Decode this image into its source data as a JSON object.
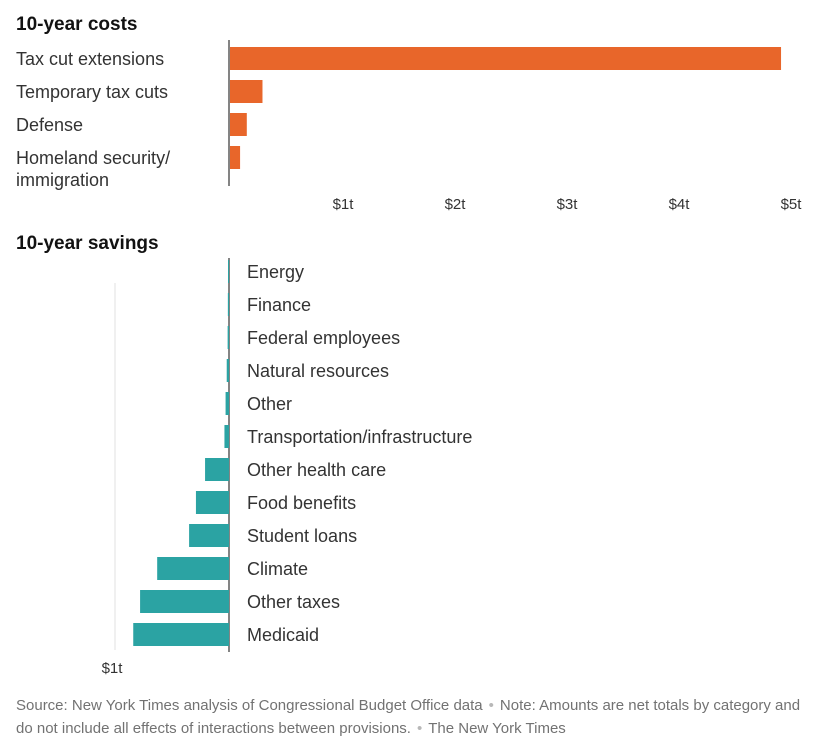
{
  "chart_data": [
    {
      "type": "bar",
      "orientation": "horizontal",
      "title": "10-year costs",
      "unit": "trillion dollars",
      "categories": [
        "Tax cut extensions",
        "Temporary tax cuts",
        "Defense",
        "Homeland security/ immigration"
      ],
      "category_lines": [
        [
          "Tax cut extensions"
        ],
        [
          "Temporary tax cuts"
        ],
        [
          "Defense"
        ],
        [
          "Homeland security/",
          "immigration"
        ]
      ],
      "values": [
        4.92,
        0.29,
        0.15,
        0.09
      ],
      "xlim": [
        0,
        5
      ],
      "ticks": [
        1,
        2,
        3,
        4,
        5
      ],
      "tick_labels": [
        "$1t",
        "$2t",
        "$3t",
        "$4t",
        "$5t"
      ],
      "color": "#e8662a"
    },
    {
      "type": "bar",
      "orientation": "horizontal",
      "direction": "leftward",
      "title": "10-year savings",
      "unit": "trillion dollars",
      "categories": [
        "Energy",
        "Finance",
        "Federal employees",
        "Natural resources",
        "Other",
        "Transportation/infrastructure",
        "Other health care",
        "Food benefits",
        "Student loans",
        "Climate",
        "Other taxes",
        "Medicaid"
      ],
      "values": [
        0.003,
        0.01,
        0.012,
        0.02,
        0.03,
        0.04,
        0.21,
        0.29,
        0.35,
        0.63,
        0.78,
        0.84
      ],
      "xlim": [
        0,
        1
      ],
      "ticks": [
        1
      ],
      "tick_labels": [
        "$1t"
      ],
      "color": "#2ba3a3"
    }
  ],
  "footer": {
    "source": "Source: New York Times analysis of Congressional Budget Office data",
    "separator": "•",
    "note": "Note: Amounts are net totals by category and do not include all effects of interactions between provisions.",
    "credit": "The New York Times"
  }
}
